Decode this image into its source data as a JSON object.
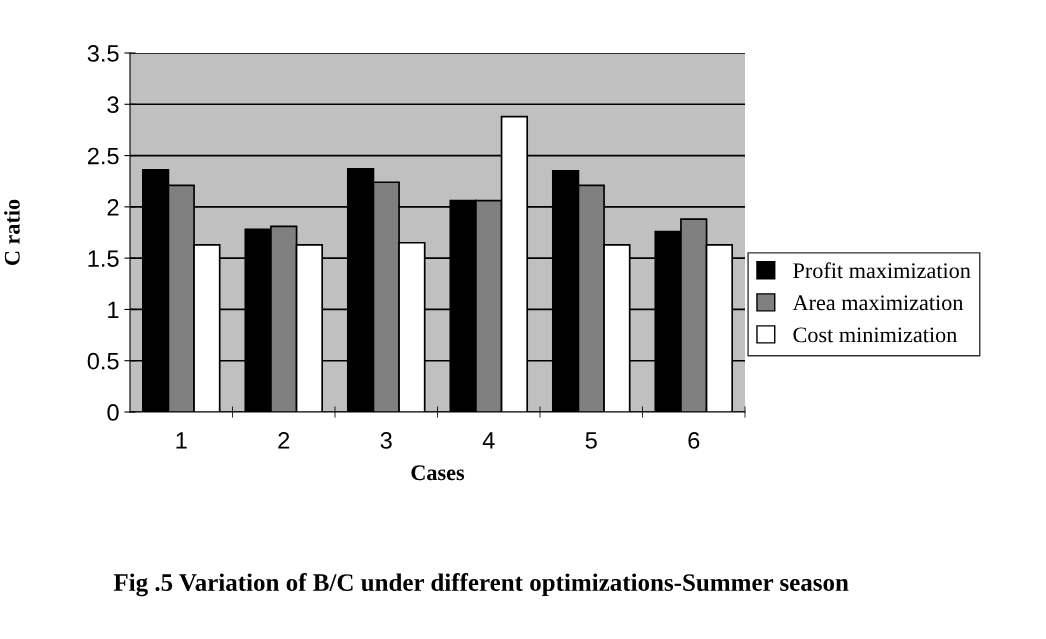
{
  "chart_data": {
    "type": "bar",
    "xlabel": "Cases",
    "ylabel": "C ratio",
    "categories": [
      "1",
      "2",
      "3",
      "4",
      "5",
      "6"
    ],
    "series": [
      {
        "name": "Profit maximization",
        "color": "#000000",
        "values": [
          2.36,
          1.78,
          2.37,
          2.06,
          2.35,
          1.76
        ]
      },
      {
        "name": "Area maximization",
        "color": "#808080",
        "values": [
          2.21,
          1.81,
          2.24,
          2.06,
          2.21,
          1.88
        ]
      },
      {
        "name": "Cost minimization",
        "color": "#ffffff",
        "values": [
          1.63,
          1.63,
          1.65,
          2.88,
          1.63,
          1.63
        ]
      }
    ],
    "ylim": [
      0,
      3.5
    ],
    "yticks": [
      0,
      0.5,
      1,
      1.5,
      2,
      2.5,
      3,
      3.5
    ],
    "grid": "y",
    "legend": "right",
    "annotations": [
      "Fig .5 Variation of B/C under different optimizations-Summer season"
    ]
  }
}
